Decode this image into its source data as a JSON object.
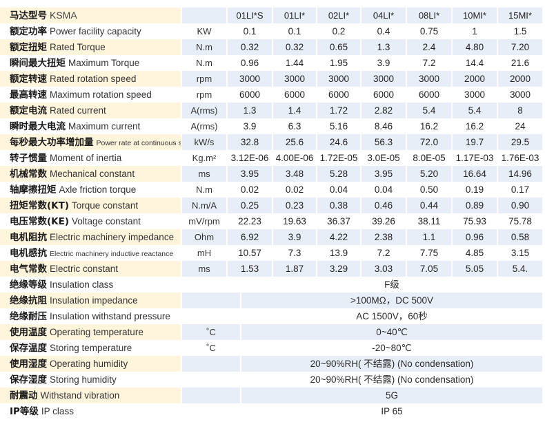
{
  "header": {
    "zh": "马达型号",
    "en": "KSMA",
    "models": [
      "01LI*S",
      "01LI*",
      "02LI*",
      "04LI*",
      "08LI*",
      "10MI*",
      "15MI*"
    ]
  },
  "rows": [
    {
      "zh": "额定功率",
      "en": "Power facility capacity",
      "unit": "KW",
      "values": [
        "0.1",
        "0.1",
        "0.2",
        "0.4",
        "0.75",
        "1",
        "1.5"
      ]
    },
    {
      "zh": "额定扭矩",
      "en": "Rated Torque",
      "unit": "N.m",
      "values": [
        "0.32",
        "0.32",
        "0.65",
        "1.3",
        "2.4",
        "4.80",
        "7.20"
      ]
    },
    {
      "zh": "瞬间最大扭矩",
      "en": "Maximum Torque",
      "unit": "N.m",
      "values": [
        "0.96",
        "1.44",
        "1.95",
        "3.9",
        "7.2",
        "14.4",
        "21.6"
      ]
    },
    {
      "zh": "额定转速",
      "en": "Rated rotation speed",
      "unit": "rpm",
      "values": [
        "3000",
        "3000",
        "3000",
        "3000",
        "3000",
        "2000",
        "2000"
      ]
    },
    {
      "zh": "最高转速",
      "en": "Maximum rotation speed",
      "unit": "rpm",
      "values": [
        "6000",
        "6000",
        "6000",
        "6000",
        "6000",
        "3000",
        "3000"
      ]
    },
    {
      "zh": "额定电流",
      "en": "Rated current",
      "unit": "A(rms)",
      "values": [
        "1.3",
        "1.4",
        "1.72",
        "2.82",
        "5.4",
        "5.4",
        "8"
      ]
    },
    {
      "zh": "瞬时最大电流",
      "en": "Maximum current",
      "unit": "A(rms)",
      "values": [
        "3.9",
        "6.3",
        "5.16",
        "8.46",
        "16.2",
        "16.2",
        "24"
      ]
    },
    {
      "zh": "每秒最大功率增加量",
      "en": "Power rate at continuous speed",
      "unit": "kW/s",
      "values": [
        "32.8",
        "25.6",
        "24.6",
        "56.3",
        "72.0",
        "19.7",
        "29.5"
      ]
    },
    {
      "zh": "转子惯量",
      "en": "Moment of inertia",
      "unit": "Kg.m²",
      "values": [
        "3.12E-06",
        "4.00E-06",
        "1.72E-05",
        "3.0E-05",
        "8.0E-05",
        "1.17E-03",
        "1.76E-03"
      ]
    },
    {
      "zh": "机械常数",
      "en": "Mechanical constant",
      "unit": "ms",
      "values": [
        "3.95",
        "3.48",
        "5.28",
        "3.95",
        "5.20",
        "16.64",
        "14.96"
      ]
    },
    {
      "zh": "轴摩擦扭矩",
      "en": "Axle friction torque",
      "unit": "N.m",
      "values": [
        "0.02",
        "0.02",
        "0.04",
        "0.04",
        "0.50",
        "0.19",
        "0.17"
      ]
    },
    {
      "zh": "扭矩常数(KT)",
      "en": "Torque constant",
      "unit": "N.m/A",
      "values": [
        "0.25",
        "0.23",
        "0.38",
        "0.46",
        "0.44",
        "0.89",
        "0.90"
      ]
    },
    {
      "zh": "电压常数(KE)",
      "en": "Voltage constant",
      "unit": "mV/rpm",
      "values": [
        "22.23",
        "19.63",
        "36.37",
        "39.26",
        "38.11",
        "75.93",
        "75.78"
      ]
    },
    {
      "zh": "电机阻抗",
      "en": "Electric machinery impedance",
      "unit": "Ohm",
      "values": [
        "6.92",
        "3.9",
        "4.22",
        "2.38",
        "1.1",
        "0.96",
        "0.58"
      ]
    },
    {
      "zh": "电机感抗",
      "en": "Electric machinery inductive reactance",
      "unit": "mH",
      "values": [
        "10.57",
        "7.3",
        "13.9",
        "7.2",
        "7.75",
        "4.85",
        "3.15"
      ]
    },
    {
      "zh": "电气常数",
      "en": "Electric constant",
      "unit": "ms",
      "values": [
        "1.53",
        "1.87",
        "3.29",
        "3.03",
        "7.05",
        "5.05",
        "5.4."
      ]
    }
  ],
  "common_rows": [
    {
      "zh": "绝缘等级",
      "en": "Insulation class",
      "unit": "",
      "value": "F级"
    },
    {
      "zh": "绝缘抗阻",
      "en": "Insulation impedance",
      "unit": "",
      "value": ">100MΩ，DC 500V"
    },
    {
      "zh": "绝缘耐压",
      "en": "Insulation withstand pressure",
      "unit": "",
      "value": "AC 1500V，60秒"
    },
    {
      "zh": "使用温度",
      "en": "Operating temperature",
      "unit": "˚C",
      "value": "0~40℃"
    },
    {
      "zh": "保存温度",
      "en": "Storing temperature",
      "unit": "˚C",
      "value": "-20~80℃"
    },
    {
      "zh": "使用湿度",
      "en": "Operating humidity",
      "unit": "",
      "value": "20~90%RH( 不结露) (No condensation)"
    },
    {
      "zh": "保存湿度",
      "en": "Storing humidity",
      "unit": "",
      "value": "20~90%RH( 不结露) (No condensation)"
    },
    {
      "zh": "耐震动",
      "en": "Withstand vibration",
      "unit": "",
      "value": "5G"
    },
    {
      "zh": "IP等级",
      "en": "IP class",
      "unit": "",
      "value": "IP 65"
    }
  ]
}
